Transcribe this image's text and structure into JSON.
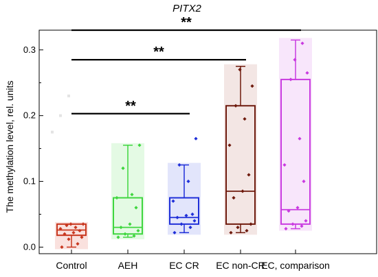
{
  "chart_data": {
    "type": "box",
    "title": "PITX2",
    "xlabel": "",
    "ylabel": "The methylation level, rel. units",
    "ylim": [
      -0.01,
      0.33
    ],
    "yticks": [
      0.0,
      0.1,
      0.2,
      0.3
    ],
    "ytick_labels": [
      "0.0",
      "0.1",
      "0.2",
      "0.3"
    ],
    "categories": [
      "Control",
      "AEH",
      "EC CR",
      "EC non-CR",
      "EC, comparison"
    ],
    "groups": [
      {
        "name": "Control",
        "color": "#c8371f",
        "shade": "#f6c9c3",
        "min": 0.0,
        "q1": 0.018,
        "median": 0.026,
        "q3": 0.035,
        "max": 0.035,
        "points": [
          0.0,
          0.005,
          0.012,
          0.015,
          0.02,
          0.022,
          0.025,
          0.028,
          0.03,
          0.033,
          0.035,
          0.035
        ],
        "outliers": [
          0.175,
          0.2,
          0.23
        ]
      },
      {
        "name": "AEH",
        "color": "#3fd63f",
        "shade": "#cdf5cd",
        "min": 0.015,
        "q1": 0.02,
        "median": 0.03,
        "q3": 0.075,
        "max": 0.155,
        "points": [
          0.015,
          0.017,
          0.02,
          0.025,
          0.03,
          0.035,
          0.06,
          0.075,
          0.08,
          0.12,
          0.155
        ]
      },
      {
        "name": "EC CR",
        "color": "#1f2fd8",
        "shade": "#cad0f7",
        "min": 0.022,
        "q1": 0.035,
        "median": 0.045,
        "q3": 0.075,
        "max": 0.125,
        "points": [
          0.022,
          0.03,
          0.035,
          0.04,
          0.045,
          0.048,
          0.05,
          0.07,
          0.1,
          0.125,
          0.165
        ]
      },
      {
        "name": "EC non-CR",
        "color": "#6e1a0d",
        "shade": "#ead2cd",
        "min": 0.022,
        "q1": 0.035,
        "median": 0.085,
        "q3": 0.215,
        "max": 0.275,
        "points": [
          0.022,
          0.025,
          0.03,
          0.035,
          0.075,
          0.085,
          0.11,
          0.155,
          0.195,
          0.215,
          0.245,
          0.27
        ]
      },
      {
        "name": "EC, comparison",
        "color": "#c93be0",
        "shade": "#f3d1f8",
        "min": 0.028,
        "q1": 0.035,
        "median": 0.057,
        "q3": 0.255,
        "max": 0.315,
        "points": [
          0.028,
          0.032,
          0.035,
          0.04,
          0.055,
          0.06,
          0.1,
          0.125,
          0.165,
          0.255,
          0.265,
          0.285,
          0.31
        ]
      }
    ],
    "significance": [
      {
        "from": "Control",
        "to": "EC CR",
        "y": 0.203,
        "label": "**"
      },
      {
        "from": "Control",
        "to": "EC non-CR",
        "y": 0.285,
        "label": "**"
      },
      {
        "from": "Control",
        "to": "EC, comparison",
        "y": 0.33,
        "label": "**"
      }
    ]
  }
}
